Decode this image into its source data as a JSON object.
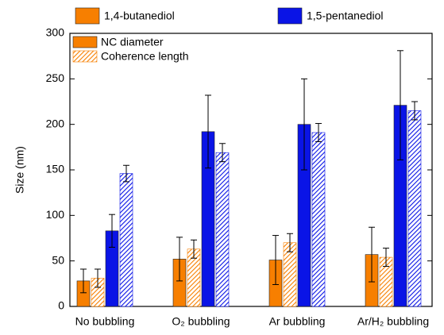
{
  "chart_data": {
    "type": "bar",
    "ylabel": "Size (nm)",
    "categories": [
      "No bubbling",
      "O₂ bubbling",
      "Ar bubbling",
      "Ar/H₂ bubbling"
    ],
    "measures": [
      "NC diameter",
      "Coherence length"
    ],
    "series": [
      {
        "name": "1,4-butanediol",
        "color": "#f77f00",
        "diameter": [
          28,
          52,
          51,
          57
        ],
        "diameter_errors": [
          13,
          24,
          27,
          30
        ],
        "coherence": [
          31,
          63,
          70,
          54
        ],
        "coherence_errors": [
          10,
          10,
          10,
          10
        ]
      },
      {
        "name": "1,5-pentanediol",
        "color": "#0a14e6",
        "diameter": [
          83,
          192,
          200,
          221
        ],
        "diameter_errors": [
          18,
          40,
          50,
          60
        ],
        "coherence": [
          146,
          169,
          191,
          215
        ],
        "coherence_errors": [
          9,
          10,
          10,
          10
        ]
      }
    ],
    "ylim": [
      0,
      300
    ],
    "yticks": [
      0,
      50,
      100,
      150,
      200,
      250,
      300
    ]
  }
}
